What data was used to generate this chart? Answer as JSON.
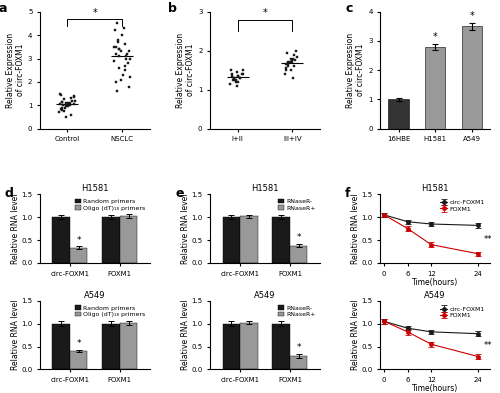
{
  "panel_a": {
    "control_points": [
      0.5,
      0.6,
      0.7,
      0.75,
      0.8,
      0.85,
      0.9,
      0.9,
      0.95,
      0.95,
      1.0,
      1.0,
      1.0,
      1.05,
      1.05,
      1.1,
      1.1,
      1.1,
      1.15,
      1.15,
      1.2,
      1.2,
      1.25,
      1.3,
      1.35,
      1.4,
      1.45,
      1.5
    ],
    "nsclc_points": [
      1.6,
      1.8,
      2.0,
      2.1,
      2.2,
      2.3,
      2.5,
      2.6,
      2.7,
      2.8,
      2.9,
      3.0,
      3.0,
      3.1,
      3.1,
      3.2,
      3.2,
      3.3,
      3.3,
      3.4,
      3.4,
      3.5,
      3.5,
      3.6,
      3.7,
      3.8,
      4.0,
      4.2,
      4.3,
      4.5
    ],
    "ylabel": "Relative Expression\nof circ-FOXM1",
    "ylim": [
      0,
      5
    ],
    "yticks": [
      0,
      1,
      2,
      3,
      4,
      5
    ],
    "xticks": [
      "Control",
      "NSCLC"
    ]
  },
  "panel_b": {
    "i_ii_points": [
      1.1,
      1.15,
      1.2,
      1.2,
      1.25,
      1.25,
      1.25,
      1.3,
      1.3,
      1.3,
      1.3,
      1.35,
      1.35,
      1.35,
      1.4,
      1.4,
      1.4,
      1.45,
      1.5,
      1.5
    ],
    "iii_iv_points": [
      1.3,
      1.4,
      1.5,
      1.5,
      1.55,
      1.6,
      1.6,
      1.65,
      1.65,
      1.7,
      1.7,
      1.7,
      1.75,
      1.75,
      1.8,
      1.8,
      1.85,
      1.9,
      1.95,
      2.0
    ],
    "ylabel": "Relative Expression\nof circ-FOXM1",
    "ylim": [
      0,
      3
    ],
    "yticks": [
      0,
      1,
      2,
      3
    ],
    "xticks": [
      "I+II",
      "III+IV"
    ]
  },
  "panel_c": {
    "categories": [
      "16HBE",
      "H1581",
      "A549"
    ],
    "values": [
      1.0,
      2.8,
      3.5
    ],
    "errors": [
      0.05,
      0.1,
      0.12
    ],
    "colors": [
      "#333333",
      "#999999",
      "#999999"
    ],
    "ylabel": "Relative Expression\nof circ-FOXM1",
    "ylim": [
      0,
      4
    ],
    "yticks": [
      0,
      1,
      2,
      3,
      4
    ]
  },
  "panel_d_h1581": {
    "categories": [
      "circ-FOXM1",
      "FOXM1"
    ],
    "v1": [
      1.0,
      1.0
    ],
    "v2": [
      0.33,
      1.02
    ],
    "e1": [
      0.05,
      0.05
    ],
    "e2": [
      0.03,
      0.04
    ],
    "label1": "Random primers",
    "label2": "Oligo (dT)₁₈ primers",
    "ylabel": "Relative RNA level",
    "ylim": [
      0,
      1.5
    ],
    "yticks": [
      0.0,
      0.5,
      1.0,
      1.5
    ],
    "title": "H1581",
    "star_idx": [
      0
    ]
  },
  "panel_d_a549": {
    "categories": [
      "circ-FOXM1",
      "FOXM1"
    ],
    "v1": [
      1.0,
      1.0
    ],
    "v2": [
      0.4,
      1.02
    ],
    "e1": [
      0.05,
      0.05
    ],
    "e2": [
      0.03,
      0.04
    ],
    "label1": "Random primers",
    "label2": "Oligo (dT)₁₈ primers",
    "ylabel": "Relative RNA level",
    "ylim": [
      0,
      1.5
    ],
    "yticks": [
      0.0,
      0.5,
      1.0,
      1.5
    ],
    "title": "A549",
    "star_idx": [
      0
    ]
  },
  "panel_e_h1581": {
    "categories": [
      "circ-FOXM1",
      "FOXM1"
    ],
    "v1": [
      1.0,
      1.0
    ],
    "v2": [
      1.02,
      0.38
    ],
    "e1": [
      0.05,
      0.05
    ],
    "e2": [
      0.03,
      0.04
    ],
    "label1": "RNaseR-",
    "label2": "RNaseR+",
    "ylabel": "Relative RNA level",
    "ylim": [
      0,
      1.5
    ],
    "yticks": [
      0.0,
      0.5,
      1.0,
      1.5
    ],
    "title": "H1581",
    "star_idx": [
      1
    ]
  },
  "panel_e_a549": {
    "categories": [
      "circ-FOXM1",
      "FOXM1"
    ],
    "v1": [
      1.0,
      1.0
    ],
    "v2": [
      1.02,
      0.3
    ],
    "e1": [
      0.05,
      0.05
    ],
    "e2": [
      0.03,
      0.04
    ],
    "label1": "RNaseR-",
    "label2": "RNaseR+",
    "ylabel": "Relative RNA level",
    "ylim": [
      0,
      1.5
    ],
    "yticks": [
      0.0,
      0.5,
      1.0,
      1.5
    ],
    "title": "A549",
    "star_idx": [
      1
    ]
  },
  "panel_f_h1581": {
    "timepoints": [
      0,
      6,
      12,
      24
    ],
    "circ_values": [
      1.05,
      0.9,
      0.85,
      0.82
    ],
    "foxm1_values": [
      1.05,
      0.75,
      0.4,
      0.2
    ],
    "circ_errors": [
      0.05,
      0.04,
      0.04,
      0.05
    ],
    "foxm1_errors": [
      0.05,
      0.06,
      0.05,
      0.04
    ],
    "ylabel": "Relative RNA level",
    "ylim": [
      0,
      1.5
    ],
    "yticks": [
      0.0,
      0.5,
      1.0,
      1.5
    ],
    "title": "H1581",
    "xlabel": "Time(hours)"
  },
  "panel_f_a549": {
    "timepoints": [
      0,
      6,
      12,
      24
    ],
    "circ_values": [
      1.05,
      0.9,
      0.82,
      0.78
    ],
    "foxm1_values": [
      1.05,
      0.82,
      0.55,
      0.28
    ],
    "circ_errors": [
      0.05,
      0.04,
      0.05,
      0.06
    ],
    "foxm1_errors": [
      0.05,
      0.06,
      0.05,
      0.05
    ],
    "ylabel": "Relative RNA level",
    "ylim": [
      0,
      1.5
    ],
    "yticks": [
      0.0,
      0.5,
      1.0,
      1.5
    ],
    "title": "A549",
    "xlabel": "Time(hours)"
  },
  "colors": {
    "black": "#1a1a1a",
    "gray": "#999999",
    "red": "#cc0000"
  },
  "label_fontsize": 5.5,
  "tick_fontsize": 5,
  "title_fontsize": 6,
  "legend_fontsize": 4.5,
  "panel_label_fontsize": 9
}
